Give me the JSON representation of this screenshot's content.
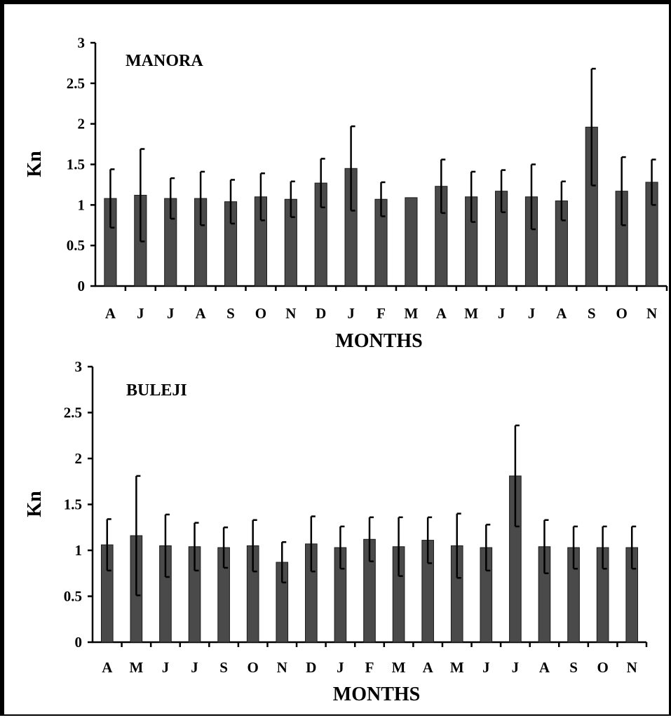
{
  "chart_data": [
    {
      "type": "bar",
      "title": "MANORA",
      "xlabel": "MONTHS",
      "ylabel": "Kn",
      "ylim": [
        0,
        3
      ],
      "yticks": [
        "0",
        "0.5",
        "1",
        "1.5",
        "2",
        "2.5",
        "3"
      ],
      "categories": [
        "A",
        "J",
        "J",
        "A",
        "S",
        "O",
        "N",
        "D",
        "J",
        "F",
        "M",
        "A",
        "M",
        "J",
        "J",
        "A",
        "S",
        "O",
        "N"
      ],
      "values": [
        1.08,
        1.12,
        1.08,
        1.08,
        1.04,
        1.1,
        1.07,
        1.27,
        1.45,
        1.07,
        1.09,
        1.23,
        1.1,
        1.17,
        1.1,
        1.05,
        1.96,
        1.17,
        1.28
      ],
      "errors": [
        0.36,
        0.57,
        0.25,
        0.33,
        0.27,
        0.29,
        0.22,
        0.3,
        0.52,
        0.21,
        0.0,
        0.33,
        0.31,
        0.26,
        0.4,
        0.24,
        0.72,
        0.42,
        0.28
      ],
      "bar_color": "#4a4a4a",
      "grid": false
    },
    {
      "type": "bar",
      "title": "BULEJI",
      "xlabel": "MONTHS",
      "ylabel": "Kn",
      "ylim": [
        0,
        3
      ],
      "yticks": [
        "0",
        "0.5",
        "1",
        "1.5",
        "2",
        "2.5",
        "3"
      ],
      "categories": [
        "A",
        "M",
        "J",
        "J",
        "S",
        "O",
        "N",
        "D",
        "J",
        "F",
        "M",
        "A",
        "M",
        "J",
        "J",
        "A",
        "S",
        "O",
        "N"
      ],
      "values": [
        1.06,
        1.16,
        1.05,
        1.04,
        1.03,
        1.05,
        0.87,
        1.07,
        1.03,
        1.12,
        1.04,
        1.11,
        1.05,
        1.03,
        1.81,
        1.04,
        1.03,
        1.03,
        1.03
      ],
      "errors": [
        0.28,
        0.65,
        0.34,
        0.26,
        0.22,
        0.28,
        0.22,
        0.3,
        0.23,
        0.24,
        0.32,
        0.25,
        0.35,
        0.25,
        0.55,
        0.29,
        0.23,
        0.23,
        0.23
      ],
      "bar_color": "#4a4a4a",
      "grid": false
    }
  ]
}
